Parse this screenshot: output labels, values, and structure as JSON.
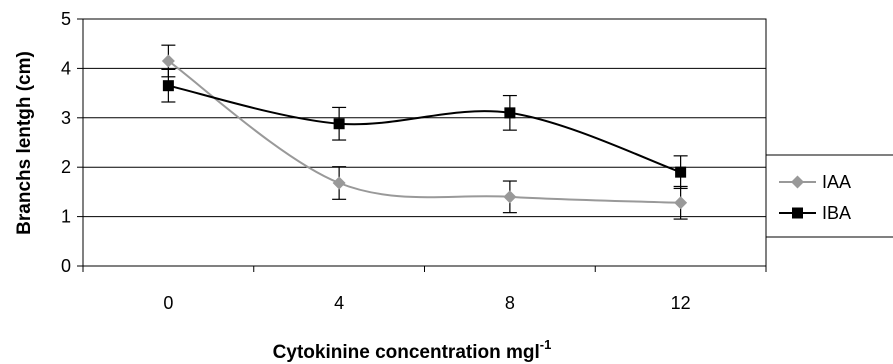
{
  "chart_data": {
    "type": "line",
    "x": [
      0,
      4,
      8,
      12
    ],
    "xlabel": "Cytokinine concentration mgl",
    "xlabel_superscript": "-1",
    "ylabel": "Branchs lentgh (cm)",
    "ylim": [
      0,
      5
    ],
    "yticks": [
      "0",
      "1",
      "2",
      "3",
      "4",
      "5"
    ],
    "xticks": [
      "0",
      "4",
      "8",
      "12"
    ],
    "grid": "horizontal",
    "legend_position": "right",
    "series": [
      {
        "name": "IAA",
        "values": [
          4.15,
          1.68,
          1.4,
          1.28
        ],
        "errors": [
          0.32,
          0.33,
          0.32,
          0.33
        ],
        "color": "#999999",
        "marker": "diamond"
      },
      {
        "name": "IBA",
        "values": [
          3.65,
          2.88,
          3.1,
          1.9
        ],
        "errors": [
          0.33,
          0.33,
          0.35,
          0.33
        ],
        "color": "#000000",
        "marker": "square"
      }
    ]
  }
}
